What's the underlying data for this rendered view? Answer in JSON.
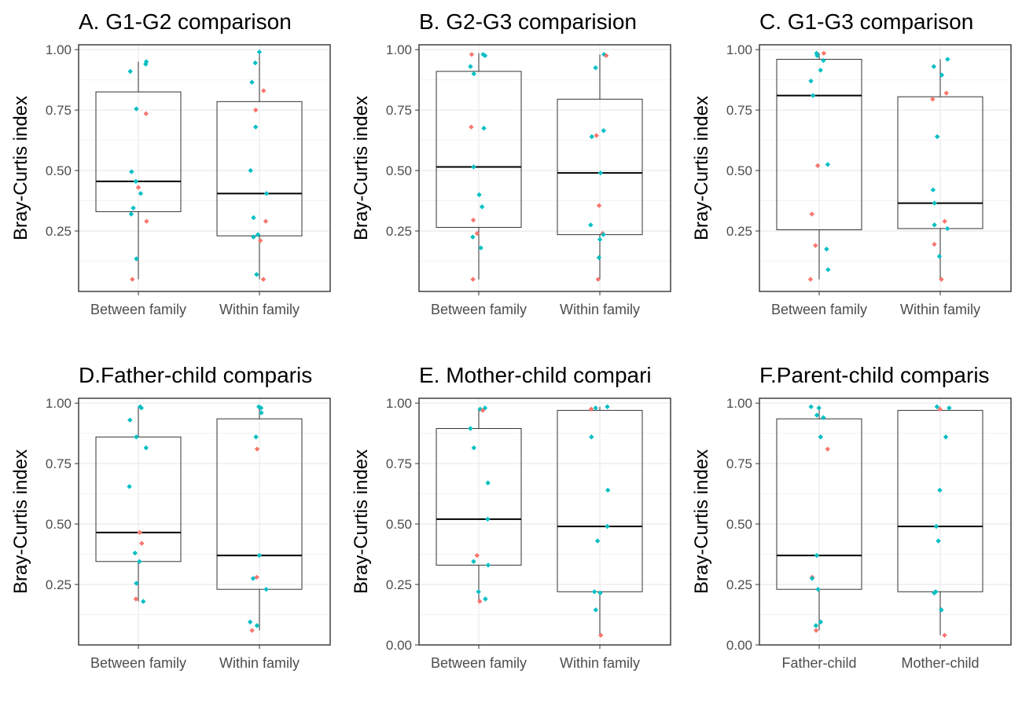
{
  "colors": {
    "group_a": "#F8766D",
    "group_b": "#00BFC4",
    "grid_major": "#EBEBEB",
    "grid_minor": "#F2F2F2",
    "axis": "#333333",
    "box": "#333333"
  },
  "chart_data": [
    {
      "type": "box",
      "title": "A. G1-G2 comparison",
      "ylabel": "Bray-Curtis index",
      "ylim": [
        0.0,
        1.02
      ],
      "yticks": [
        "0.25",
        "0.50",
        "0.75",
        "1.00"
      ],
      "categories": [
        "Between family",
        "Within family"
      ],
      "boxes": [
        {
          "q1": 0.33,
          "median": 0.455,
          "q3": 0.825,
          "whisker_low": 0.05,
          "whisker_high": 0.95
        },
        {
          "q1": 0.23,
          "median": 0.405,
          "q3": 0.785,
          "whisker_low": 0.05,
          "whisker_high": 0.99
        }
      ],
      "points": [
        {
          "cat": 0,
          "y": 0.94,
          "c": "b"
        },
        {
          "cat": 0,
          "y": 0.95,
          "c": "b"
        },
        {
          "cat": 0,
          "y": 0.91,
          "c": "b"
        },
        {
          "cat": 0,
          "y": 0.755,
          "c": "b"
        },
        {
          "cat": 0,
          "y": 0.735,
          "c": "a"
        },
        {
          "cat": 0,
          "y": 0.495,
          "c": "b"
        },
        {
          "cat": 0,
          "y": 0.455,
          "c": "b"
        },
        {
          "cat": 0,
          "y": 0.43,
          "c": "a"
        },
        {
          "cat": 0,
          "y": 0.405,
          "c": "b"
        },
        {
          "cat": 0,
          "y": 0.345,
          "c": "b"
        },
        {
          "cat": 0,
          "y": 0.32,
          "c": "b"
        },
        {
          "cat": 0,
          "y": 0.29,
          "c": "a"
        },
        {
          "cat": 0,
          "y": 0.135,
          "c": "b"
        },
        {
          "cat": 0,
          "y": 0.05,
          "c": "a"
        },
        {
          "cat": 1,
          "y": 0.99,
          "c": "b"
        },
        {
          "cat": 1,
          "y": 0.945,
          "c": "b"
        },
        {
          "cat": 1,
          "y": 0.865,
          "c": "b"
        },
        {
          "cat": 1,
          "y": 0.83,
          "c": "a"
        },
        {
          "cat": 1,
          "y": 0.75,
          "c": "a"
        },
        {
          "cat": 1,
          "y": 0.68,
          "c": "b"
        },
        {
          "cat": 1,
          "y": 0.5,
          "c": "b"
        },
        {
          "cat": 1,
          "y": 0.405,
          "c": "b"
        },
        {
          "cat": 1,
          "y": 0.305,
          "c": "b"
        },
        {
          "cat": 1,
          "y": 0.29,
          "c": "a"
        },
        {
          "cat": 1,
          "y": 0.235,
          "c": "b"
        },
        {
          "cat": 1,
          "y": 0.225,
          "c": "b"
        },
        {
          "cat": 1,
          "y": 0.21,
          "c": "a"
        },
        {
          "cat": 1,
          "y": 0.07,
          "c": "b"
        },
        {
          "cat": 1,
          "y": 0.05,
          "c": "a"
        }
      ]
    },
    {
      "type": "box",
      "title": "B. G2-G3 comparision",
      "ylabel": "Bray-Curtis index",
      "ylim": [
        0.0,
        1.02
      ],
      "yticks": [
        "0.25",
        "0.50",
        "0.75",
        "1.00"
      ],
      "categories": [
        "Between family",
        "Within family"
      ],
      "boxes": [
        {
          "q1": 0.265,
          "median": 0.515,
          "q3": 0.91,
          "whisker_low": 0.05,
          "whisker_high": 0.985
        },
        {
          "q1": 0.235,
          "median": 0.49,
          "q3": 0.795,
          "whisker_low": 0.05,
          "whisker_high": 0.98
        }
      ],
      "points": [
        {
          "cat": 0,
          "y": 0.98,
          "c": "a"
        },
        {
          "cat": 0,
          "y": 0.975,
          "c": "b"
        },
        {
          "cat": 0,
          "y": 0.98,
          "c": "b"
        },
        {
          "cat": 0,
          "y": 0.93,
          "c": "b"
        },
        {
          "cat": 0,
          "y": 0.9,
          "c": "b"
        },
        {
          "cat": 0,
          "y": 0.68,
          "c": "a"
        },
        {
          "cat": 0,
          "y": 0.675,
          "c": "b"
        },
        {
          "cat": 0,
          "y": 0.515,
          "c": "b"
        },
        {
          "cat": 0,
          "y": 0.4,
          "c": "b"
        },
        {
          "cat": 0,
          "y": 0.35,
          "c": "b"
        },
        {
          "cat": 0,
          "y": 0.295,
          "c": "a"
        },
        {
          "cat": 0,
          "y": 0.24,
          "c": "a"
        },
        {
          "cat": 0,
          "y": 0.225,
          "c": "b"
        },
        {
          "cat": 0,
          "y": 0.18,
          "c": "b"
        },
        {
          "cat": 0,
          "y": 0.05,
          "c": "a"
        },
        {
          "cat": 1,
          "y": 0.98,
          "c": "b"
        },
        {
          "cat": 1,
          "y": 0.975,
          "c": "a"
        },
        {
          "cat": 1,
          "y": 0.925,
          "c": "b"
        },
        {
          "cat": 1,
          "y": 0.665,
          "c": "b"
        },
        {
          "cat": 1,
          "y": 0.645,
          "c": "a"
        },
        {
          "cat": 1,
          "y": 0.64,
          "c": "b"
        },
        {
          "cat": 1,
          "y": 0.49,
          "c": "b"
        },
        {
          "cat": 1,
          "y": 0.355,
          "c": "a"
        },
        {
          "cat": 1,
          "y": 0.275,
          "c": "b"
        },
        {
          "cat": 1,
          "y": 0.24,
          "c": "a"
        },
        {
          "cat": 1,
          "y": 0.235,
          "c": "b"
        },
        {
          "cat": 1,
          "y": 0.215,
          "c": "b"
        },
        {
          "cat": 1,
          "y": 0.14,
          "c": "b"
        },
        {
          "cat": 1,
          "y": 0.05,
          "c": "a"
        }
      ]
    },
    {
      "type": "box",
      "title": "C. G1-G3 comparison",
      "ylabel": "Bray-Curtis index",
      "ylim": [
        0.0,
        1.02
      ],
      "yticks": [
        "0.25",
        "0.50",
        "0.75",
        "1.00"
      ],
      "categories": [
        "Between family",
        "Within family"
      ],
      "boxes": [
        {
          "q1": 0.255,
          "median": 0.81,
          "q3": 0.96,
          "whisker_low": 0.05,
          "whisker_high": 0.985
        },
        {
          "q1": 0.26,
          "median": 0.365,
          "q3": 0.805,
          "whisker_low": 0.05,
          "whisker_high": 0.96
        }
      ],
      "points": [
        {
          "cat": 0,
          "y": 0.985,
          "c": "b"
        },
        {
          "cat": 0,
          "y": 0.985,
          "c": "a"
        },
        {
          "cat": 0,
          "y": 0.975,
          "c": "b"
        },
        {
          "cat": 0,
          "y": 0.955,
          "c": "b"
        },
        {
          "cat": 0,
          "y": 0.915,
          "c": "b"
        },
        {
          "cat": 0,
          "y": 0.87,
          "c": "b"
        },
        {
          "cat": 0,
          "y": 0.81,
          "c": "b"
        },
        {
          "cat": 0,
          "y": 0.525,
          "c": "b"
        },
        {
          "cat": 0,
          "y": 0.52,
          "c": "a"
        },
        {
          "cat": 0,
          "y": 0.32,
          "c": "a"
        },
        {
          "cat": 0,
          "y": 0.19,
          "c": "a"
        },
        {
          "cat": 0,
          "y": 0.175,
          "c": "b"
        },
        {
          "cat": 0,
          "y": 0.09,
          "c": "b"
        },
        {
          "cat": 0,
          "y": 0.05,
          "c": "a"
        },
        {
          "cat": 1,
          "y": 0.96,
          "c": "b"
        },
        {
          "cat": 1,
          "y": 0.93,
          "c": "b"
        },
        {
          "cat": 1,
          "y": 0.895,
          "c": "b"
        },
        {
          "cat": 1,
          "y": 0.82,
          "c": "a"
        },
        {
          "cat": 1,
          "y": 0.795,
          "c": "a"
        },
        {
          "cat": 1,
          "y": 0.64,
          "c": "b"
        },
        {
          "cat": 1,
          "y": 0.42,
          "c": "b"
        },
        {
          "cat": 1,
          "y": 0.365,
          "c": "b"
        },
        {
          "cat": 1,
          "y": 0.29,
          "c": "a"
        },
        {
          "cat": 1,
          "y": 0.275,
          "c": "b"
        },
        {
          "cat": 1,
          "y": 0.26,
          "c": "b"
        },
        {
          "cat": 1,
          "y": 0.195,
          "c": "a"
        },
        {
          "cat": 1,
          "y": 0.145,
          "c": "b"
        },
        {
          "cat": 1,
          "y": 0.05,
          "c": "a"
        }
      ]
    },
    {
      "type": "box",
      "title": "D.Father-child comparis",
      "ylabel": "Bray-Curtis index",
      "ylim": [
        0.0,
        1.02
      ],
      "yticks": [
        "0.25",
        "0.50",
        "0.75",
        "1.00"
      ],
      "categories": [
        "Between family",
        "Within family"
      ],
      "boxes": [
        {
          "q1": 0.345,
          "median": 0.465,
          "q3": 0.86,
          "whisker_low": 0.18,
          "whisker_high": 0.985
        },
        {
          "q1": 0.23,
          "median": 0.37,
          "q3": 0.935,
          "whisker_low": 0.06,
          "whisker_high": 0.985
        }
      ],
      "points": [
        {
          "cat": 0,
          "y": 0.985,
          "c": "b"
        },
        {
          "cat": 0,
          "y": 0.98,
          "c": "b"
        },
        {
          "cat": 0,
          "y": 0.93,
          "c": "b"
        },
        {
          "cat": 0,
          "y": 0.86,
          "c": "b"
        },
        {
          "cat": 0,
          "y": 0.815,
          "c": "b"
        },
        {
          "cat": 0,
          "y": 0.655,
          "c": "b"
        },
        {
          "cat": 0,
          "y": 0.465,
          "c": "a"
        },
        {
          "cat": 0,
          "y": 0.42,
          "c": "a"
        },
        {
          "cat": 0,
          "y": 0.38,
          "c": "b"
        },
        {
          "cat": 0,
          "y": 0.345,
          "c": "b"
        },
        {
          "cat": 0,
          "y": 0.255,
          "c": "b"
        },
        {
          "cat": 0,
          "y": 0.19,
          "c": "a"
        },
        {
          "cat": 0,
          "y": 0.18,
          "c": "b"
        },
        {
          "cat": 1,
          "y": 0.985,
          "c": "b"
        },
        {
          "cat": 1,
          "y": 0.98,
          "c": "b"
        },
        {
          "cat": 1,
          "y": 0.96,
          "c": "b"
        },
        {
          "cat": 1,
          "y": 0.86,
          "c": "b"
        },
        {
          "cat": 1,
          "y": 0.81,
          "c": "a"
        },
        {
          "cat": 1,
          "y": 0.37,
          "c": "b"
        },
        {
          "cat": 1,
          "y": 0.28,
          "c": "a"
        },
        {
          "cat": 1,
          "y": 0.275,
          "c": "b"
        },
        {
          "cat": 1,
          "y": 0.23,
          "c": "b"
        },
        {
          "cat": 1,
          "y": 0.095,
          "c": "b"
        },
        {
          "cat": 1,
          "y": 0.08,
          "c": "b"
        },
        {
          "cat": 1,
          "y": 0.06,
          "c": "a"
        }
      ]
    },
    {
      "type": "box",
      "title": "E. Mother-child compari",
      "ylabel": "Bray-Curtis index",
      "ylim": [
        0.0,
        1.02
      ],
      "yticks": [
        "0.00",
        "0.25",
        "0.50",
        "0.75",
        "1.00"
      ],
      "categories": [
        "Between family",
        "Within family"
      ],
      "boxes": [
        {
          "q1": 0.33,
          "median": 0.52,
          "q3": 0.895,
          "whisker_low": 0.18,
          "whisker_high": 0.98
        },
        {
          "q1": 0.22,
          "median": 0.49,
          "q3": 0.97,
          "whisker_low": 0.04,
          "whisker_high": 0.985
        }
      ],
      "points": [
        {
          "cat": 0,
          "y": 0.98,
          "c": "b"
        },
        {
          "cat": 0,
          "y": 0.975,
          "c": "b"
        },
        {
          "cat": 0,
          "y": 0.97,
          "c": "a"
        },
        {
          "cat": 0,
          "y": 0.895,
          "c": "b"
        },
        {
          "cat": 0,
          "y": 0.815,
          "c": "b"
        },
        {
          "cat": 0,
          "y": 0.67,
          "c": "b"
        },
        {
          "cat": 0,
          "y": 0.52,
          "c": "b"
        },
        {
          "cat": 0,
          "y": 0.37,
          "c": "a"
        },
        {
          "cat": 0,
          "y": 0.345,
          "c": "b"
        },
        {
          "cat": 0,
          "y": 0.33,
          "c": "b"
        },
        {
          "cat": 0,
          "y": 0.22,
          "c": "b"
        },
        {
          "cat": 0,
          "y": 0.19,
          "c": "b"
        },
        {
          "cat": 0,
          "y": 0.18,
          "c": "a"
        },
        {
          "cat": 1,
          "y": 0.985,
          "c": "b"
        },
        {
          "cat": 1,
          "y": 0.98,
          "c": "b"
        },
        {
          "cat": 1,
          "y": 0.975,
          "c": "a"
        },
        {
          "cat": 1,
          "y": 0.86,
          "c": "b"
        },
        {
          "cat": 1,
          "y": 0.64,
          "c": "b"
        },
        {
          "cat": 1,
          "y": 0.49,
          "c": "b"
        },
        {
          "cat": 1,
          "y": 0.43,
          "c": "b"
        },
        {
          "cat": 1,
          "y": 0.22,
          "c": "b"
        },
        {
          "cat": 1,
          "y": 0.215,
          "c": "b"
        },
        {
          "cat": 1,
          "y": 0.145,
          "c": "b"
        },
        {
          "cat": 1,
          "y": 0.04,
          "c": "a"
        }
      ]
    },
    {
      "type": "box",
      "title": "F.Parent-child comparis",
      "ylabel": "Bray-Curtis index",
      "ylim": [
        0.0,
        1.02
      ],
      "yticks": [
        "0.00",
        "0.25",
        "0.50",
        "0.75",
        "1.00"
      ],
      "categories": [
        "Father-child",
        "Mother-child"
      ],
      "boxes": [
        {
          "q1": 0.23,
          "median": 0.37,
          "q3": 0.935,
          "whisker_low": 0.06,
          "whisker_high": 0.985
        },
        {
          "q1": 0.22,
          "median": 0.49,
          "q3": 0.97,
          "whisker_low": 0.04,
          "whisker_high": 0.985
        }
      ],
      "points": [
        {
          "cat": 0,
          "y": 0.985,
          "c": "b"
        },
        {
          "cat": 0,
          "y": 0.98,
          "c": "b"
        },
        {
          "cat": 0,
          "y": 0.95,
          "c": "b"
        },
        {
          "cat": 0,
          "y": 0.94,
          "c": "b"
        },
        {
          "cat": 0,
          "y": 0.86,
          "c": "b"
        },
        {
          "cat": 0,
          "y": 0.81,
          "c": "a"
        },
        {
          "cat": 0,
          "y": 0.37,
          "c": "b"
        },
        {
          "cat": 0,
          "y": 0.28,
          "c": "a"
        },
        {
          "cat": 0,
          "y": 0.275,
          "c": "b"
        },
        {
          "cat": 0,
          "y": 0.23,
          "c": "b"
        },
        {
          "cat": 0,
          "y": 0.095,
          "c": "b"
        },
        {
          "cat": 0,
          "y": 0.08,
          "c": "b"
        },
        {
          "cat": 0,
          "y": 0.06,
          "c": "a"
        },
        {
          "cat": 1,
          "y": 0.985,
          "c": "b"
        },
        {
          "cat": 1,
          "y": 0.98,
          "c": "b"
        },
        {
          "cat": 1,
          "y": 0.975,
          "c": "a"
        },
        {
          "cat": 1,
          "y": 0.86,
          "c": "b"
        },
        {
          "cat": 1,
          "y": 0.64,
          "c": "b"
        },
        {
          "cat": 1,
          "y": 0.49,
          "c": "b"
        },
        {
          "cat": 1,
          "y": 0.43,
          "c": "b"
        },
        {
          "cat": 1,
          "y": 0.22,
          "c": "b"
        },
        {
          "cat": 1,
          "y": 0.215,
          "c": "b"
        },
        {
          "cat": 1,
          "y": 0.145,
          "c": "b"
        },
        {
          "cat": 1,
          "y": 0.04,
          "c": "a"
        }
      ]
    }
  ]
}
